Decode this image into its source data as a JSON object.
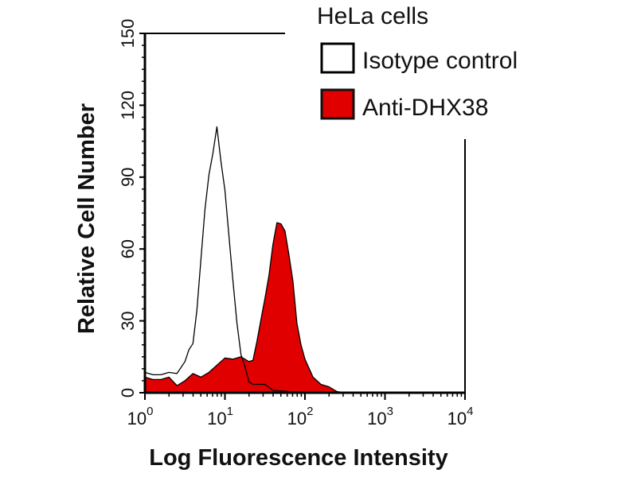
{
  "chart_data": {
    "type": "area",
    "title": "HeLa cells",
    "xlabel": "Log Fluorescence Intensity",
    "ylabel": "Relative Cell Number",
    "xscale": "log",
    "xlim": [
      1,
      10000
    ],
    "ylim": [
      0,
      150
    ],
    "xticks": [
      {
        "base": "10",
        "exp": "0"
      },
      {
        "base": "10",
        "exp": "1"
      },
      {
        "base": "10",
        "exp": "2"
      },
      {
        "base": "10",
        "exp": "3"
      },
      {
        "base": "10",
        "exp": "4"
      }
    ],
    "yticks": [
      "0",
      "30",
      "60",
      "90",
      "120",
      "150"
    ],
    "ytick_values": [
      0,
      30,
      60,
      90,
      120,
      150
    ],
    "legend": "top-right",
    "series": [
      {
        "name": "Isotype control",
        "fill": "none",
        "stroke": "#000000",
        "log10_x": [
          0,
          0.1,
          0.2,
          0.3,
          0.4,
          0.5,
          0.55,
          0.6,
          0.65,
          0.7,
          0.75,
          0.8,
          0.85,
          0.9,
          0.95,
          1.0,
          1.05,
          1.1,
          1.15,
          1.2,
          1.25,
          1.3,
          1.35,
          1.4,
          1.5,
          1.6,
          1.8,
          2.0,
          4.0
        ],
        "y": [
          10,
          8,
          7,
          7,
          9,
          13,
          17,
          22,
          35,
          55,
          75,
          92,
          100,
          110,
          98,
          85,
          65,
          45,
          30,
          16,
          10,
          6,
          4,
          3,
          2,
          1,
          0.5,
          0.3,
          0
        ]
      },
      {
        "name": "Anti-DHX38",
        "fill": "#e00000",
        "stroke": "#000000",
        "log10_x": [
          0,
          0.1,
          0.2,
          0.3,
          0.4,
          0.5,
          0.6,
          0.7,
          0.8,
          0.9,
          1.0,
          1.1,
          1.2,
          1.3,
          1.35,
          1.4,
          1.45,
          1.5,
          1.55,
          1.6,
          1.65,
          1.7,
          1.75,
          1.8,
          1.85,
          1.9,
          1.95,
          2.0,
          2.1,
          2.2,
          2.3,
          2.4,
          2.5,
          4.0
        ],
        "y": [
          8,
          6,
          5,
          5,
          4,
          5,
          7,
          8,
          9,
          11,
          13,
          15,
          15,
          12,
          15,
          22,
          30,
          38,
          50,
          62,
          70,
          72,
          68,
          57,
          45,
          30,
          20,
          13,
          8,
          4,
          2,
          0.5,
          0,
          0
        ]
      }
    ]
  }
}
